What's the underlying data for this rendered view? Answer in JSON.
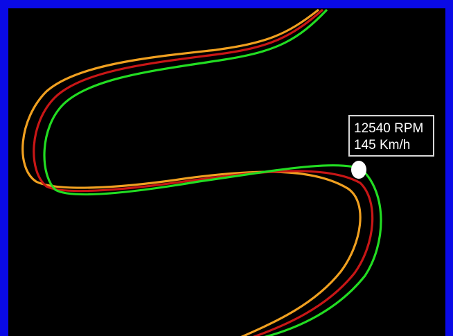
{
  "telemetry": {
    "rpm_text": "12540 RPM",
    "speed_text": "145 Km/h"
  },
  "colors": {
    "background": "#000000",
    "frame": "#0a0ae6",
    "line_green": "#22dd22",
    "line_red": "#c81616",
    "line_orange": "#f0a020",
    "marker": "#ffffff",
    "label_border": "#d8d8d8"
  }
}
